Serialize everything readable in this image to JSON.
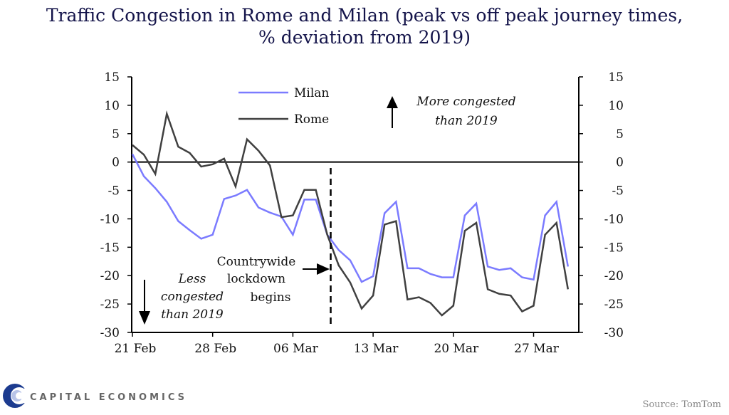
{
  "chart_data": {
    "type": "line",
    "title": [
      "Traffic Congestion in Rome and Milan (peak vs off peak journey times,",
      "% deviation from 2019)"
    ],
    "xlabel": "",
    "ylabel": "",
    "ylim": [
      -30,
      15
    ],
    "yticks": [
      15,
      10,
      5,
      0,
      -5,
      -10,
      -15,
      -20,
      -25,
      -30
    ],
    "xticks": [
      {
        "day": 0,
        "label": "21 Feb"
      },
      {
        "day": 7,
        "label": "28 Feb"
      },
      {
        "day": 14,
        "label": "06 Mar"
      },
      {
        "day": 21,
        "label": "13 Mar"
      },
      {
        "day": 28,
        "label": "20 Mar"
      },
      {
        "day": 35,
        "label": "27 Mar"
      }
    ],
    "x_start": "21 Feb",
    "x_end": "30 Mar",
    "series": [
      {
        "name": "Milan",
        "color": "#7b7bff",
        "values": [
          1.4,
          -2.5,
          -4.6,
          -7.0,
          -10.4,
          -12.0,
          -13.5,
          -12.8,
          -6.5,
          -5.9,
          -4.9,
          -8.0,
          -8.9,
          -9.6,
          -12.8,
          -6.6,
          -6.6,
          -12.8,
          -15.5,
          -17.3,
          -21.1,
          -20.1,
          -9.0,
          -7.0,
          -18.7,
          -18.7,
          -19.7,
          -20.3,
          -20.3,
          -9.4,
          -7.3,
          -18.4,
          -19.0,
          -18.7,
          -20.3,
          -20.7,
          -9.4,
          -7.0,
          -18.4
        ]
      },
      {
        "name": "Rome",
        "color": "#404040",
        "values": [
          3.0,
          1.3,
          -2.1,
          8.5,
          2.7,
          1.6,
          -0.8,
          -0.4,
          0.6,
          -4.3,
          4.0,
          2.0,
          -0.6,
          -9.7,
          -9.4,
          -4.9,
          -4.9,
          -12.8,
          -18.2,
          -21.2,
          -25.8,
          -23.5,
          -11.0,
          -10.4,
          -24.2,
          -23.8,
          -24.8,
          -27.0,
          -25.3,
          -12.1,
          -10.7,
          -22.4,
          -23.2,
          -23.5,
          -26.3,
          -25.3,
          -12.8,
          -10.7,
          -22.4
        ]
      }
    ],
    "legend_placement": "top-center",
    "grid": false,
    "annotations": {
      "more": [
        "More congested",
        "than 2019"
      ],
      "less": [
        "Less",
        "congested",
        "than 2019"
      ],
      "lockdown": [
        "Countrywide",
        "lockdown",
        "begins"
      ],
      "lockdown_day": 17.3
    }
  },
  "footer": {
    "brand": "CAPITAL ECONOMICS",
    "source": "Source: TomTom"
  }
}
